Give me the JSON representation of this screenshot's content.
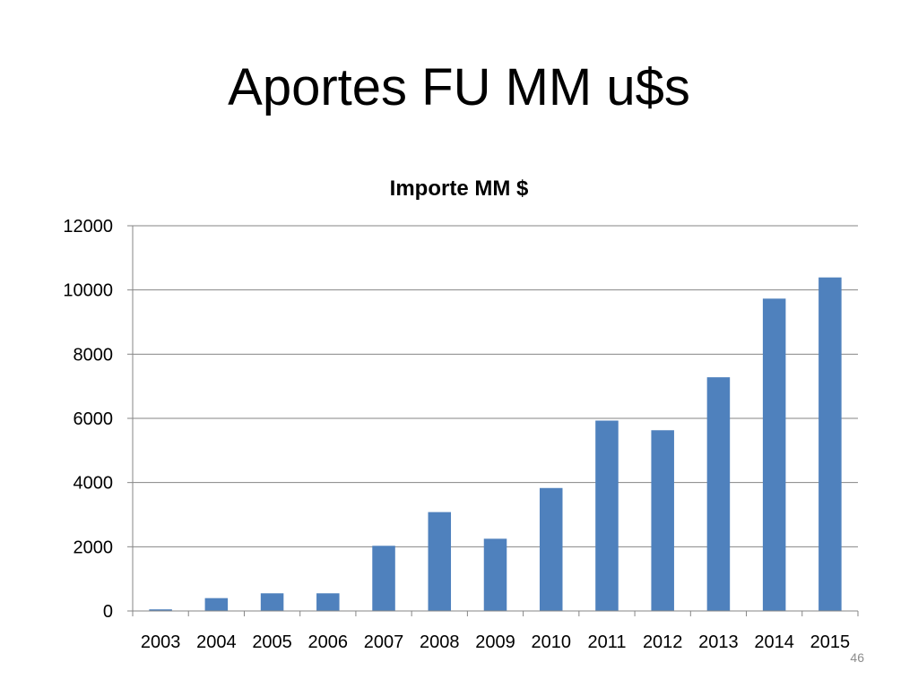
{
  "slide": {
    "title": "Aportes FU MM u$s",
    "slide_number": "46"
  },
  "colors": {
    "bar": "#4f81bd",
    "grid": "#868686",
    "axis": "#868686",
    "text": "#000000",
    "slide_number": "#8c8c8c"
  },
  "chart_data": {
    "type": "bar",
    "title": "Importe MM $",
    "xlabel": "",
    "ylabel": "",
    "categories": [
      "2003",
      "2004",
      "2005",
      "2006",
      "2007",
      "2008",
      "2009",
      "2010",
      "2011",
      "2012",
      "2013",
      "2014",
      "2015"
    ],
    "values": [
      50,
      400,
      550,
      550,
      2030,
      3080,
      2250,
      3830,
      5930,
      5630,
      7280,
      9730,
      10390
    ],
    "ylim": [
      0,
      12000
    ],
    "yticks": [
      "0",
      "2000",
      "4000",
      "6000",
      "8000",
      "10000",
      "12000"
    ],
    "grid": true,
    "legend": false
  }
}
